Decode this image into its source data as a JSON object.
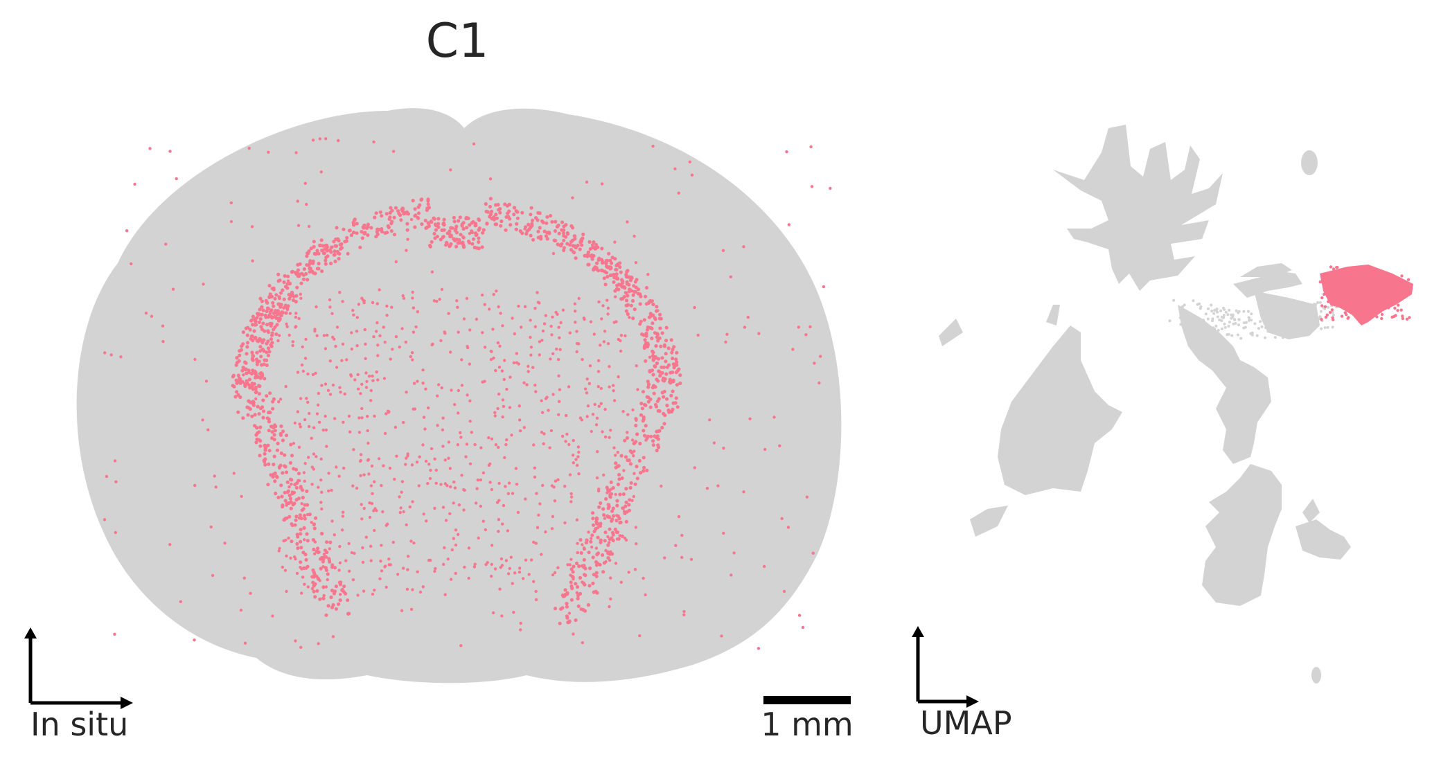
{
  "title": "C1",
  "colors": {
    "background_cells": "#d3d3d3",
    "highlight_cells": "#f7768e",
    "axes": "#000000",
    "text": "#262626"
  },
  "chart_data": [
    {
      "type": "scatter",
      "panel": "in-situ",
      "title": "C1",
      "axis_label": "In situ",
      "scale_bar_label": "1 mm",
      "series": [
        {
          "name": "",
          "color": "#d3d3d3",
          "description_region": "whole coronal brain section"
        },
        {
          "name": "",
          "color": "#f7768e",
          "description_region": "arc band around hippocampus/thalamus and scattered cells"
        }
      ],
      "grid": false,
      "legend": "none"
    },
    {
      "type": "scatter",
      "panel": "umap",
      "axis_label": "UMAP",
      "series": [
        {
          "name": "",
          "color": "#d3d3d3"
        },
        {
          "name": "",
          "color": "#f7768e"
        }
      ],
      "grid": false,
      "legend": "none"
    }
  ]
}
